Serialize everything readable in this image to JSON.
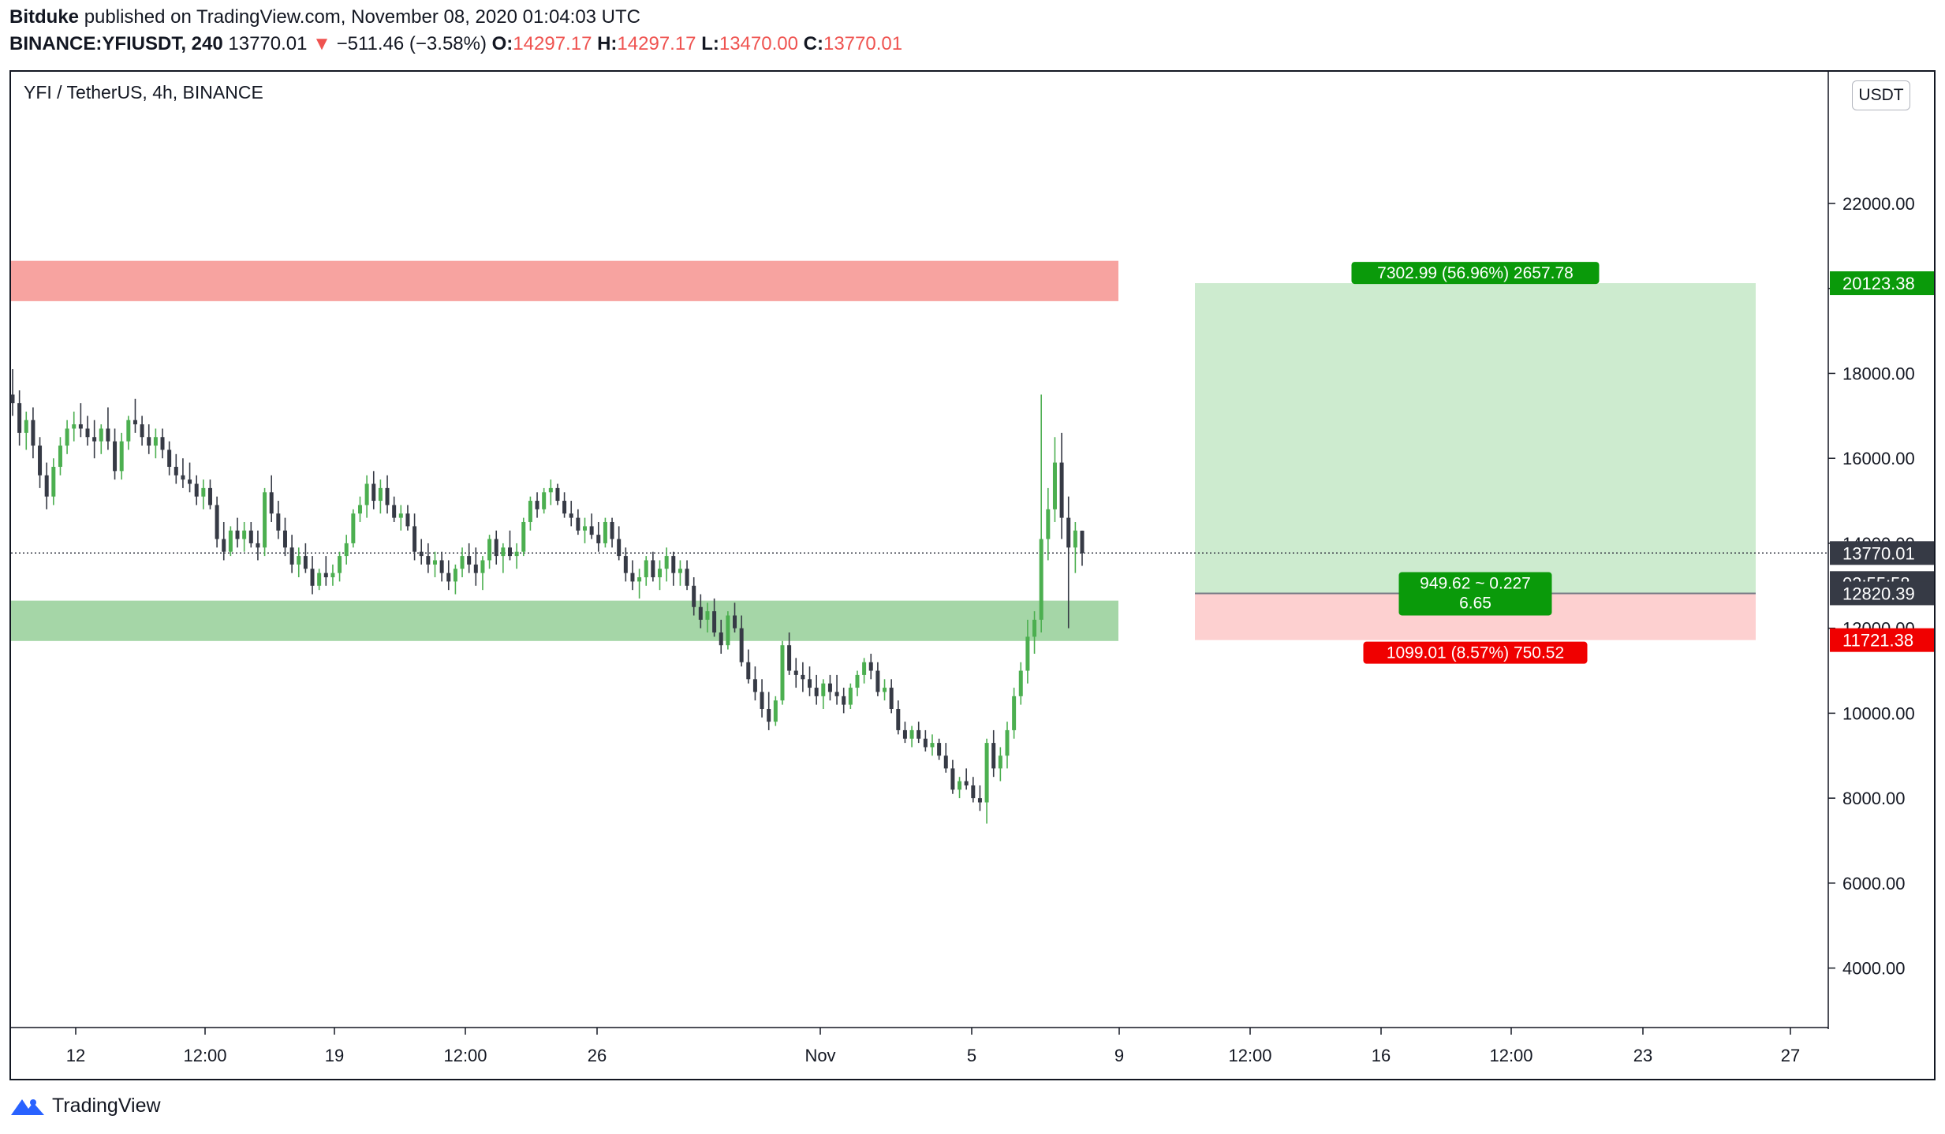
{
  "header": {
    "author": "Bitduke",
    "published": "published on TradingView.com, November 08, 2020 01:04:03 UTC",
    "symbol": "BINANCE:YFIUSDT, 240",
    "last": "13770.01",
    "arrow": "▼",
    "change": "−511.46 (−3.58%)",
    "o_label": "O:",
    "o_value": "14297.17",
    "h_label": "H:",
    "h_value": "14297.17",
    "l_label": "L:",
    "l_value": "13470.00",
    "c_label": "C:",
    "c_value": "13770.01"
  },
  "legend": "YFI / TetherUS, 4h, BINANCE",
  "unit_button": "USDT",
  "footer": {
    "brand": "TradingView"
  },
  "colors": {
    "up": "#4caf50",
    "down": "#363a45",
    "resistance": "#f7a3a0",
    "support": "#a5d6a7",
    "target_zone": "#cdebcf",
    "stop_zone": "#fdd0d0",
    "target_label": "#0a9a0a",
    "stop_label": "#f00000"
  },
  "chart_data": {
    "type": "candlestick",
    "title": "YFI / TetherUS, 4h, BINANCE",
    "y_unit": "USDT",
    "ylim": [
      2600,
      25100
    ],
    "y_ticks": [
      "4000.00",
      "6000.00",
      "8000.00",
      "10000.00",
      "12000.00",
      "14000.00",
      "16000.00",
      "18000.00",
      "20000.00",
      "22000.00"
    ],
    "x_ticks": [
      "12",
      "12:00",
      "19",
      "12:00",
      "26",
      "Nov",
      "5",
      "9",
      "12:00",
      "16",
      "12:00",
      "23",
      "27"
    ],
    "series": [
      {
        "values": [
          [
            17500,
            18100,
            17000,
            17300
          ],
          [
            17300,
            17600,
            16300,
            16600
          ],
          [
            16600,
            17100,
            16200,
            16900
          ],
          [
            16900,
            17200,
            16000,
            16300
          ],
          [
            16300,
            16500,
            15300,
            15600
          ],
          [
            15600,
            15900,
            14800,
            15100
          ],
          [
            15100,
            16000,
            14900,
            15800
          ],
          [
            15800,
            16500,
            15600,
            16300
          ],
          [
            16300,
            16900,
            16100,
            16700
          ],
          [
            16700,
            17100,
            16400,
            16800
          ],
          [
            16800,
            17300,
            16500,
            16700
          ],
          [
            16700,
            17000,
            16300,
            16500
          ],
          [
            16500,
            16900,
            16000,
            16400
          ],
          [
            16400,
            16800,
            16100,
            16700
          ],
          [
            16700,
            17200,
            16200,
            16400
          ],
          [
            16400,
            16700,
            15500,
            15700
          ],
          [
            15700,
            16600,
            15500,
            16400
          ],
          [
            16400,
            17000,
            16200,
            16900
          ],
          [
            16900,
            17400,
            16600,
            16800
          ],
          [
            16800,
            17000,
            16300,
            16500
          ],
          [
            16500,
            16800,
            16100,
            16300
          ],
          [
            16300,
            16700,
            16000,
            16500
          ],
          [
            16500,
            16700,
            16000,
            16200
          ],
          [
            16200,
            16400,
            15600,
            15800
          ],
          [
            15800,
            16100,
            15400,
            15600
          ],
          [
            15600,
            16000,
            15300,
            15500
          ],
          [
            15500,
            15900,
            15200,
            15400
          ],
          [
            15400,
            15600,
            14900,
            15100
          ],
          [
            15100,
            15500,
            14800,
            15300
          ],
          [
            15300,
            15500,
            14800,
            14900
          ],
          [
            14900,
            15100,
            13900,
            14100
          ],
          [
            14100,
            14500,
            13600,
            13800
          ],
          [
            13800,
            14400,
            13700,
            14300
          ],
          [
            14300,
            14600,
            13900,
            14100
          ],
          [
            14100,
            14500,
            13800,
            14300
          ],
          [
            14300,
            14500,
            13900,
            14000
          ],
          [
            14000,
            14300,
            13600,
            13900
          ],
          [
            13900,
            15300,
            13700,
            15200
          ],
          [
            15200,
            15600,
            14500,
            14700
          ],
          [
            14700,
            15000,
            14100,
            14300
          ],
          [
            14300,
            14600,
            13700,
            13900
          ],
          [
            13900,
            14200,
            13300,
            13500
          ],
          [
            13500,
            13900,
            13200,
            13700
          ],
          [
            13700,
            14000,
            13300,
            13400
          ],
          [
            13400,
            13700,
            12800,
            13000
          ],
          [
            13000,
            13400,
            12900,
            13300
          ],
          [
            13300,
            13700,
            13000,
            13200
          ],
          [
            13200,
            13500,
            13000,
            13300
          ],
          [
            13300,
            13800,
            13100,
            13700
          ],
          [
            13700,
            14200,
            13500,
            14000
          ],
          [
            14000,
            14800,
            13900,
            14700
          ],
          [
            14700,
            15100,
            14500,
            14900
          ],
          [
            14900,
            15600,
            14600,
            15400
          ],
          [
            15400,
            15700,
            14800,
            15000
          ],
          [
            15000,
            15500,
            14700,
            15300
          ],
          [
            15300,
            15600,
            14700,
            14900
          ],
          [
            14900,
            15100,
            14500,
            14600
          ],
          [
            14600,
            14900,
            14300,
            14700
          ],
          [
            14700,
            14900,
            14300,
            14400
          ],
          [
            14400,
            14700,
            13600,
            13800
          ],
          [
            13800,
            14100,
            13500,
            13700
          ],
          [
            13700,
            14000,
            13300,
            13500
          ],
          [
            13500,
            13800,
            13200,
            13600
          ],
          [
            13600,
            13800,
            13100,
            13300
          ],
          [
            13300,
            13600,
            12900,
            13100
          ],
          [
            13100,
            13500,
            12800,
            13400
          ],
          [
            13400,
            13900,
            13200,
            13700
          ],
          [
            13700,
            14000,
            13300,
            13500
          ],
          [
            13500,
            13900,
            13000,
            13300
          ],
          [
            13300,
            13700,
            12900,
            13600
          ],
          [
            13600,
            14200,
            13400,
            14100
          ],
          [
            14100,
            14300,
            13500,
            13700
          ],
          [
            13700,
            14000,
            13300,
            13900
          ],
          [
            13900,
            14300,
            13600,
            13700
          ],
          [
            13700,
            14000,
            13400,
            13800
          ],
          [
            13800,
            14600,
            13700,
            14500
          ],
          [
            14500,
            15100,
            14300,
            15000
          ],
          [
            15000,
            15200,
            14600,
            14800
          ],
          [
            14800,
            15300,
            14700,
            15200
          ],
          [
            15200,
            15500,
            14900,
            15300
          ],
          [
            15300,
            15400,
            14900,
            15000
          ],
          [
            15000,
            15200,
            14600,
            14700
          ],
          [
            14700,
            15000,
            14400,
            14600
          ],
          [
            14600,
            14800,
            14200,
            14300
          ],
          [
            14300,
            14600,
            14000,
            14400
          ],
          [
            14400,
            14700,
            14100,
            14200
          ],
          [
            14200,
            14500,
            13800,
            14000
          ],
          [
            14000,
            14600,
            13900,
            14500
          ],
          [
            14500,
            14600,
            13900,
            14100
          ],
          [
            14100,
            14400,
            13600,
            13700
          ],
          [
            13700,
            13900,
            13100,
            13300
          ],
          [
            13300,
            13600,
            12900,
            13100
          ],
          [
            13100,
            13400,
            12700,
            13200
          ],
          [
            13200,
            13700,
            13000,
            13600
          ],
          [
            13600,
            13800,
            13100,
            13200
          ],
          [
            13200,
            13600,
            12900,
            13400
          ],
          [
            13400,
            13900,
            13100,
            13700
          ],
          [
            13700,
            13800,
            13000,
            13300
          ],
          [
            13300,
            13600,
            13000,
            13400
          ],
          [
            13400,
            13600,
            12900,
            13000
          ],
          [
            13000,
            13200,
            12300,
            12500
          ],
          [
            12500,
            12800,
            12000,
            12200
          ],
          [
            12200,
            12600,
            11900,
            12400
          ],
          [
            12400,
            12700,
            11800,
            11900
          ],
          [
            11900,
            12200,
            11400,
            11600
          ],
          [
            11600,
            12400,
            11500,
            12300
          ],
          [
            12300,
            12600,
            11900,
            12000
          ],
          [
            12000,
            12300,
            11100,
            11200
          ],
          [
            11200,
            11500,
            10700,
            10800
          ],
          [
            10800,
            11100,
            10300,
            10500
          ],
          [
            10500,
            10800,
            9900,
            10100
          ],
          [
            10100,
            10500,
            9600,
            9800
          ],
          [
            9800,
            10400,
            9700,
            10300
          ],
          [
            10300,
            11700,
            10200,
            11600
          ],
          [
            11600,
            11900,
            10900,
            11000
          ],
          [
            11000,
            11300,
            10600,
            10900
          ],
          [
            10900,
            11200,
            10500,
            10800
          ],
          [
            10800,
            11100,
            10400,
            10600
          ],
          [
            10600,
            10900,
            10200,
            10400
          ],
          [
            10400,
            10800,
            10100,
            10700
          ],
          [
            10700,
            10900,
            10300,
            10500
          ],
          [
            10500,
            10900,
            10200,
            10400
          ],
          [
            10400,
            10600,
            10000,
            10200
          ],
          [
            10200,
            10700,
            10100,
            10600
          ],
          [
            10600,
            11000,
            10400,
            10900
          ],
          [
            10900,
            11300,
            10700,
            11200
          ],
          [
            11200,
            11400,
            10800,
            11000
          ],
          [
            11000,
            11200,
            10400,
            10500
          ],
          [
            10500,
            10800,
            10300,
            10600
          ],
          [
            10600,
            10800,
            10000,
            10100
          ],
          [
            10100,
            10300,
            9500,
            9600
          ],
          [
            9600,
            9800,
            9300,
            9400
          ],
          [
            9400,
            9700,
            9200,
            9600
          ],
          [
            9600,
            9800,
            9300,
            9400
          ],
          [
            9400,
            9600,
            9100,
            9200
          ],
          [
            9200,
            9500,
            9000,
            9300
          ],
          [
            9300,
            9400,
            8900,
            9000
          ],
          [
            9000,
            9300,
            8600,
            8700
          ],
          [
            8700,
            8900,
            8100,
            8200
          ],
          [
            8200,
            8500,
            8000,
            8400
          ],
          [
            8400,
            8700,
            8200,
            8300
          ],
          [
            8300,
            8500,
            7900,
            8000
          ],
          [
            8000,
            8300,
            7700,
            7900
          ],
          [
            7900,
            9400,
            7400,
            9300
          ],
          [
            9300,
            9600,
            8500,
            8700
          ],
          [
            8700,
            9200,
            8400,
            9000
          ],
          [
            9000,
            9800,
            8700,
            9600
          ],
          [
            9600,
            10600,
            9400,
            10400
          ],
          [
            10400,
            11200,
            10200,
            11000
          ],
          [
            11000,
            12200,
            10700,
            11800
          ],
          [
            11800,
            12400,
            11400,
            12200
          ],
          [
            12200,
            17500,
            11900,
            14100
          ],
          [
            14100,
            15300,
            13600,
            14800
          ],
          [
            14800,
            16500,
            14500,
            15900
          ],
          [
            15900,
            16600,
            14100,
            14600
          ],
          [
            14600,
            15100,
            12000,
            13900
          ],
          [
            13900,
            14500,
            13300,
            14300
          ],
          [
            14297.17,
            14297.17,
            13470.0,
            13770.01
          ]
        ]
      }
    ]
  },
  "overlays": {
    "resistance_zone": {
      "from": 19700,
      "to": 20650
    },
    "support_zone": {
      "from": 11700,
      "to": 12650
    },
    "position": {
      "entry": 12820.39,
      "target": 20123.38,
      "stop": 11721.38,
      "target_label": "7302.99 (56.96%) 2657.78",
      "entry_label_1": "949.62 ~ 0.227",
      "entry_label_2": "6.65",
      "stop_label": "1099.01 (8.57%) 750.52"
    },
    "price_axis_labels": {
      "target": "20123.38",
      "last": "13770.01",
      "countdown": "02:55:58",
      "entry": "12820.39",
      "stop": "11721.38"
    }
  }
}
